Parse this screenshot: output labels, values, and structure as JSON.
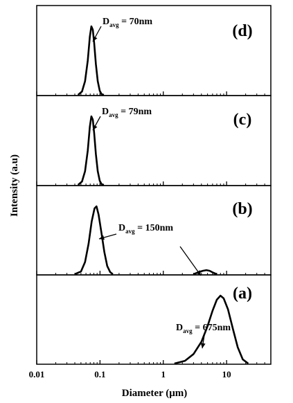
{
  "chart_data": {
    "type": "line",
    "xlabel": "Diameter (μm)",
    "ylabel": "Intensity (a.u)",
    "xscale": "log",
    "xlim": [
      0.01,
      50
    ],
    "x_ticks": [
      {
        "value": 0.01,
        "label": "0.01"
      },
      {
        "value": 0.1,
        "label": "0.1"
      },
      {
        "value": 1,
        "label": "1"
      },
      {
        "value": 10,
        "label": "10"
      }
    ],
    "grid": false,
    "panels": [
      {
        "label": "(d)",
        "annotation": {
          "main": "D",
          "sub": "avg",
          "text": " = 70nm"
        },
        "series": [
          {
            "x": [
              0.045,
              0.052,
              0.058,
              0.064,
              0.069,
              0.073,
              0.077,
              0.081,
              0.086,
              0.092,
              0.099,
              0.106,
              0.115
            ],
            "y": [
              0,
              0.05,
              0.2,
              0.5,
              0.85,
              1.0,
              0.95,
              0.75,
              0.45,
              0.2,
              0.06,
              0.01,
              0
            ]
          }
        ]
      },
      {
        "label": "(c)",
        "annotation": {
          "main": "D",
          "sub": "avg",
          "text": " = 79nm"
        },
        "series": [
          {
            "x": [
              0.045,
              0.052,
              0.058,
              0.064,
              0.069,
              0.073,
              0.077,
              0.081,
              0.086,
              0.092,
              0.099,
              0.106,
              0.115
            ],
            "y": [
              0,
              0.05,
              0.2,
              0.5,
              0.85,
              1.0,
              0.95,
              0.75,
              0.45,
              0.2,
              0.06,
              0.01,
              0
            ]
          }
        ]
      },
      {
        "label": "(b)",
        "annotation": {
          "main": "D",
          "sub": "avg",
          "text": " = 150nm"
        },
        "series": [
          {
            "x": [
              0.04,
              0.05,
              0.058,
              0.066,
              0.074,
              0.082,
              0.088,
              0.095,
              0.105,
              0.117,
              0.13,
              0.145,
              0.16,
              3.0,
              3.6,
              4.2,
              4.8,
              5.4,
              6.2,
              7.0
            ],
            "y": [
              0,
              0.04,
              0.18,
              0.45,
              0.78,
              0.97,
              1.0,
              0.88,
              0.62,
              0.33,
              0.12,
              0.03,
              0,
              0,
              0.03,
              0.05,
              0.06,
              0.05,
              0.02,
              0
            ]
          }
        ]
      },
      {
        "label": "(a)",
        "annotation": {
          "main": "D",
          "sub": "avg",
          "text": " = 675nm"
        },
        "series": [
          {
            "x": [
              1.5,
              2.2,
              3.0,
              4.0,
              5.0,
              6.0,
              7.0,
              8.0,
              9.0,
              10.5,
              12.5,
              15,
              18,
              22
            ],
            "y": [
              0,
              0.04,
              0.14,
              0.32,
              0.55,
              0.78,
              0.94,
              1.0,
              0.96,
              0.8,
              0.52,
              0.24,
              0.06,
              0
            ]
          }
        ]
      }
    ]
  }
}
